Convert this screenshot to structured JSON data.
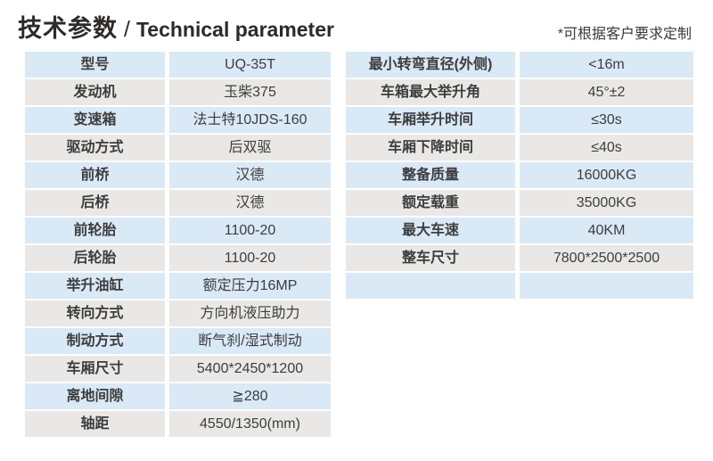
{
  "header": {
    "title_zh": "技术参数",
    "title_sep": "/",
    "title_en": "Technical parameter",
    "note": "*可根据客户要求定制"
  },
  "colors": {
    "row_blue": "#d9e9f6",
    "row_gray": "#e9e8e6",
    "text": "#3d3d3d",
    "title": "#2d2a28"
  },
  "tables": {
    "left": {
      "rows": [
        {
          "label": "型号",
          "value": "UQ-35T"
        },
        {
          "label": "发动机",
          "value": "玉柴375"
        },
        {
          "label": "变速箱",
          "value": "法士特10JDS-160"
        },
        {
          "label": "驱动方式",
          "value": "后双驱"
        },
        {
          "label": "前桥",
          "value": "汉德"
        },
        {
          "label": "后桥",
          "value": "汉德"
        },
        {
          "label": "前轮胎",
          "value": "1100-20"
        },
        {
          "label": "后轮胎",
          "value": "1100-20"
        },
        {
          "label": "举升油缸",
          "value": "额定压力16MP"
        },
        {
          "label": "转向方式",
          "value": "方向机液压助力"
        },
        {
          "label": "制动方式",
          "value": "断气刹/湿式制动"
        },
        {
          "label": "车厢尺寸",
          "value": "5400*2450*1200"
        },
        {
          "label": "离地间隙",
          "value": "≧280"
        },
        {
          "label": "轴距",
          "value": "4550/1350(mm)"
        }
      ]
    },
    "right": {
      "rows": [
        {
          "label": "最小转弯直径(外侧)",
          "value": "<16m"
        },
        {
          "label": "车箱最大举升角",
          "value": "45°±2"
        },
        {
          "label": "车厢举升时间",
          "value": "≤30s"
        },
        {
          "label": "车厢下降时间",
          "value": "≤40s"
        },
        {
          "label": "整备质量",
          "value": "16000KG"
        },
        {
          "label": "额定载重",
          "value": "35000KG"
        },
        {
          "label": "最大车速",
          "value": "40KM"
        },
        {
          "label": "整车尺寸",
          "value": "7800*2500*2500"
        },
        {
          "label": "",
          "value": ""
        }
      ]
    }
  }
}
